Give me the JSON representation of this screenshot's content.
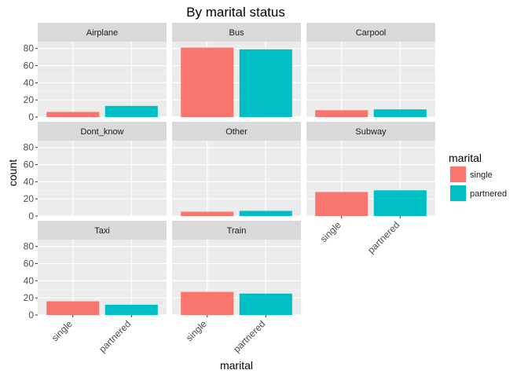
{
  "chart_data": {
    "type": "bar",
    "title": "By marital status",
    "xlabel": "marital",
    "ylabel": "count",
    "categories": [
      "single",
      "partnered"
    ],
    "ylim": [
      0,
      88
    ],
    "yticks": [
      0,
      20,
      40,
      60,
      80
    ],
    "grid": true,
    "facet_columns": 3,
    "legend": {
      "title": "marital",
      "position": "right",
      "entries": [
        {
          "label": "single",
          "color": "#F8766D"
        },
        {
          "label": "partnered",
          "color": "#00BFC4"
        }
      ]
    },
    "colors": {
      "single": "#F8766D",
      "partnered": "#00BFC4"
    },
    "panels": [
      {
        "label": "Airplane",
        "values": [
          6,
          13
        ]
      },
      {
        "label": "Bus",
        "values": [
          81,
          79
        ]
      },
      {
        "label": "Carpool",
        "values": [
          8,
          9
        ]
      },
      {
        "label": "Dont_know",
        "values": [
          0,
          0
        ]
      },
      {
        "label": "Other",
        "values": [
          5,
          6
        ]
      },
      {
        "label": "Subway",
        "values": [
          28,
          30
        ]
      },
      {
        "label": "Taxi",
        "values": [
          16,
          12
        ]
      },
      {
        "label": "Train",
        "values": [
          27,
          25
        ]
      }
    ]
  }
}
